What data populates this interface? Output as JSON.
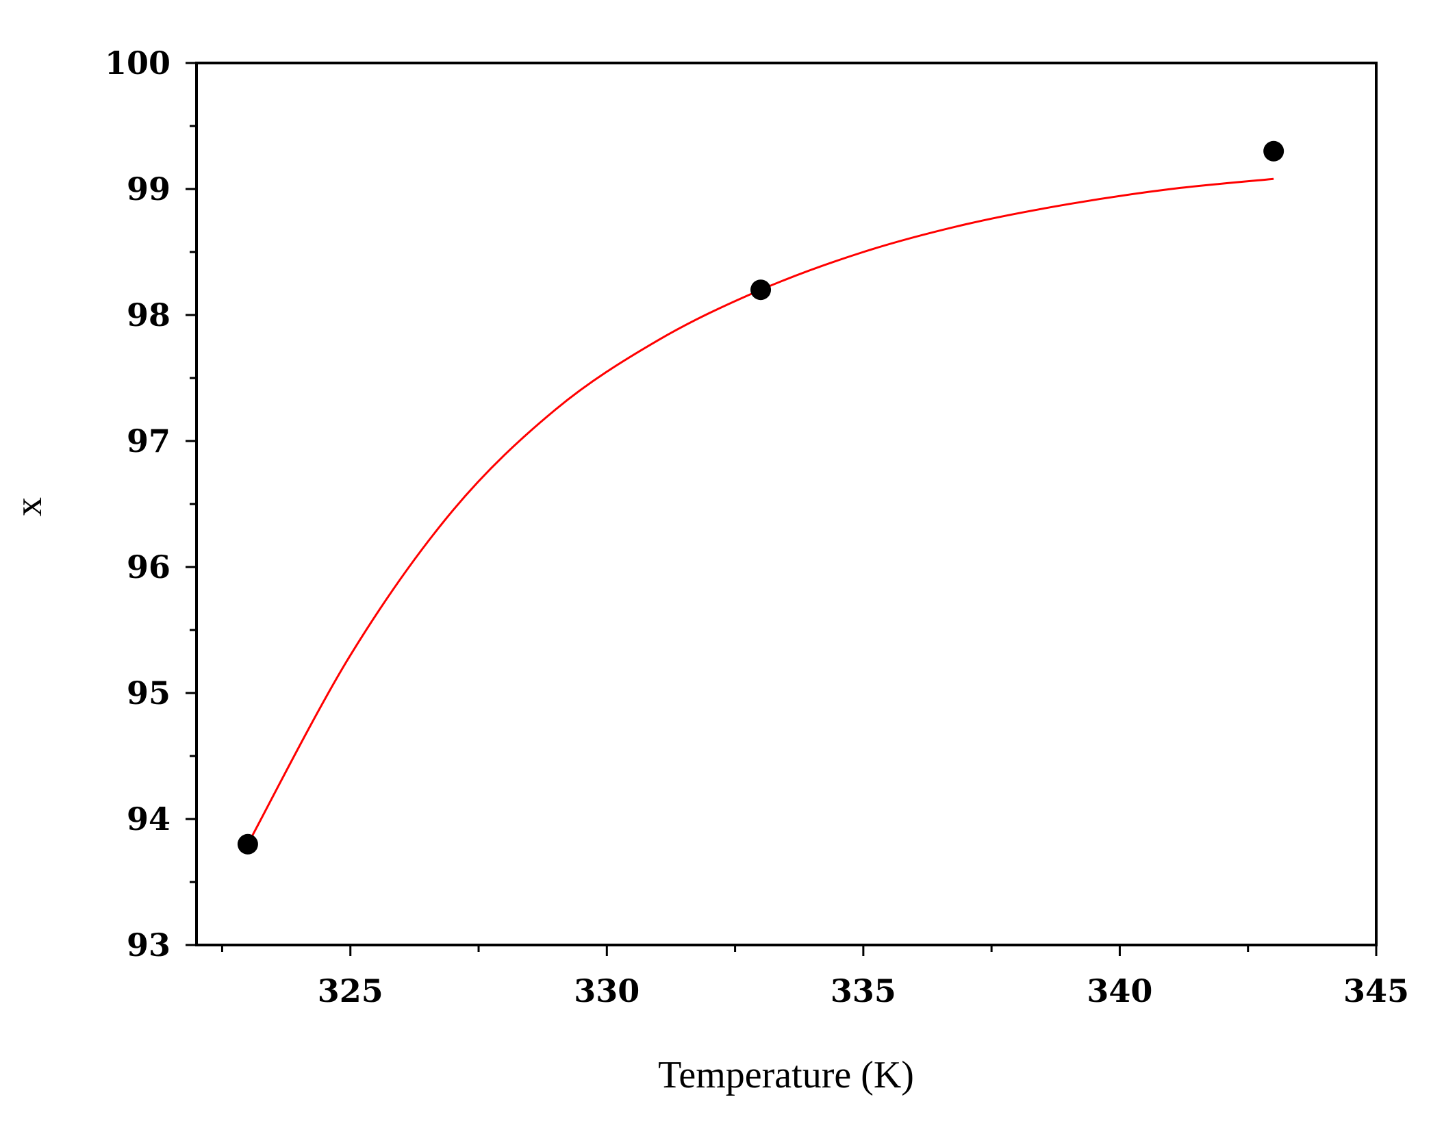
{
  "chart_data": {
    "type": "scatter",
    "title": "",
    "xlabel": "Temperature (K)",
    "ylabel": "x",
    "xlim": [
      322,
      345
    ],
    "ylim": [
      93,
      100
    ],
    "xticks": [
      325,
      330,
      335,
      340,
      345
    ],
    "xtick_labels": [
      "325",
      "330",
      "335",
      "340",
      "345"
    ],
    "yticks": [
      93,
      94,
      95,
      96,
      97,
      98,
      99,
      100
    ],
    "ytick_labels": [
      "93",
      "94",
      "95",
      "96",
      "97",
      "98",
      "99",
      "100"
    ],
    "grid": false,
    "series": [
      {
        "kind": "points",
        "x": [
          323,
          333,
          343
        ],
        "y": [
          93.8,
          98.2,
          99.3
        ],
        "color": "#000000"
      },
      {
        "kind": "fit-line",
        "x": [
          323,
          325,
          327,
          329,
          331,
          333,
          335,
          337,
          339,
          341,
          343
        ],
        "y": [
          93.8,
          95.3,
          96.45,
          97.25,
          97.8,
          98.2,
          98.5,
          98.72,
          98.88,
          99.0,
          99.08
        ],
        "color": "#ff0000"
      }
    ]
  }
}
